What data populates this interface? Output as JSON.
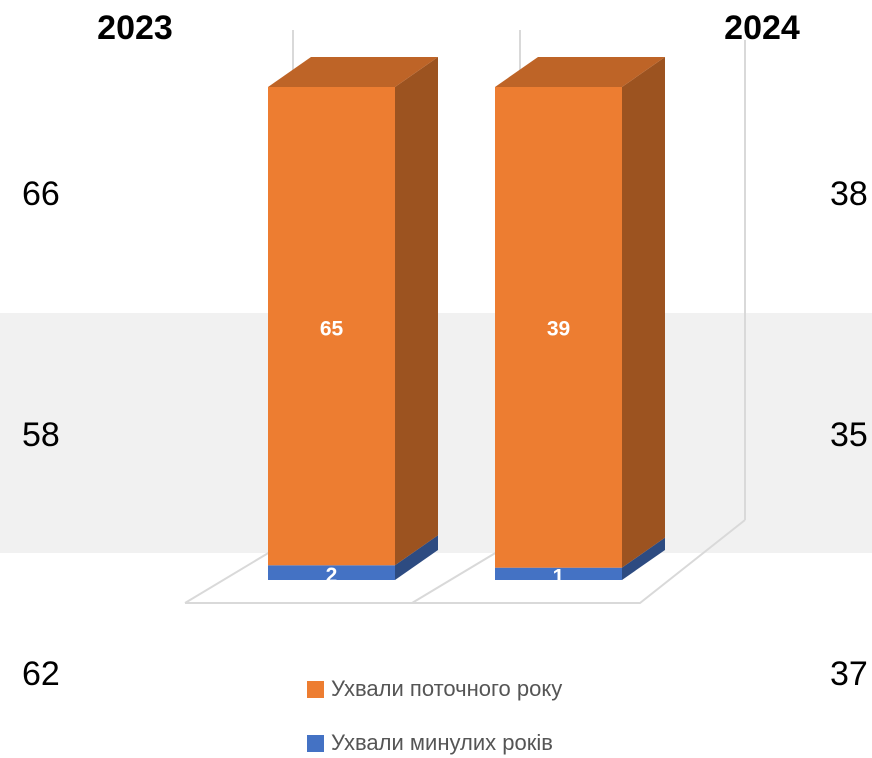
{
  "table": {
    "header": [
      "2023",
      "2024"
    ],
    "rows": [
      [
        "66",
        "38"
      ],
      [
        "58",
        "35"
      ],
      [
        "62",
        "37"
      ]
    ]
  },
  "chart_data": {
    "type": "bar",
    "stacked": "percent",
    "categories": [
      null,
      null
    ],
    "series": [
      {
        "name": "Ухвали минулих років",
        "color": "#4472c4",
        "values": [
          2,
          1
        ]
      },
      {
        "name": "Ухвали поточного року",
        "color": "#ed7d31",
        "values": [
          65,
          39
        ]
      }
    ],
    "legend": "bottom"
  }
}
